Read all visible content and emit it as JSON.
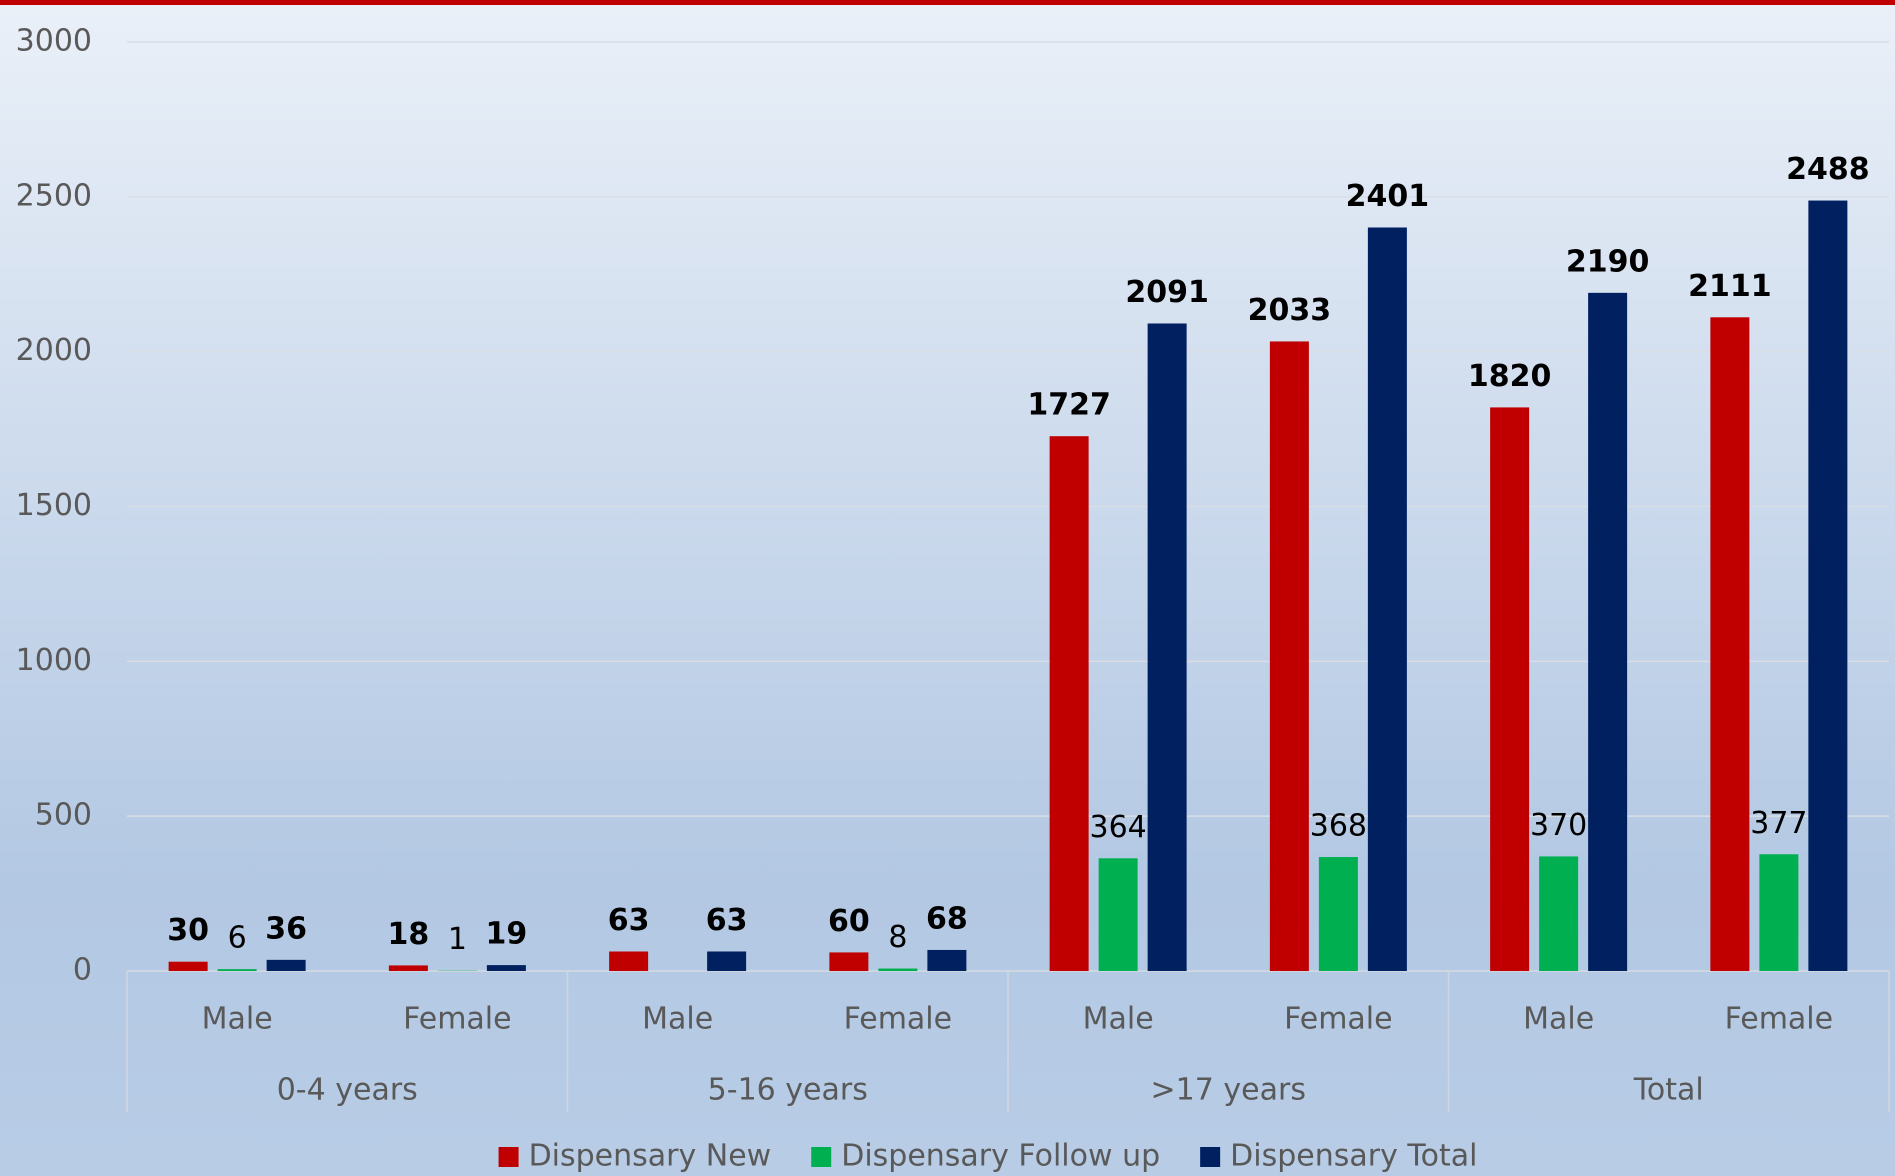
{
  "chart_data": {
    "type": "bar",
    "groups": [
      {
        "label": "0-4 years",
        "categories": [
          "Male",
          "Female"
        ]
      },
      {
        "label": "5-16 years",
        "categories": [
          "Male",
          "Female"
        ]
      },
      {
        "label": ">17 years",
        "categories": [
          "Male",
          "Female"
        ]
      },
      {
        "label": "Total",
        "categories": [
          "Male",
          "Female"
        ]
      }
    ],
    "series": [
      {
        "name": "Dispensary New",
        "color": "#c00000",
        "bold_labels": true,
        "values": [
          30,
          18,
          63,
          60,
          1727,
          2033,
          1820,
          2111
        ]
      },
      {
        "name": "Dispensary Follow up",
        "color": "#00b050",
        "bold_labels": false,
        "values": [
          6,
          1,
          null,
          8,
          364,
          368,
          370,
          377
        ]
      },
      {
        "name": "Dispensary Total",
        "color": "#002060",
        "bold_labels": true,
        "values": [
          36,
          19,
          63,
          68,
          2091,
          2401,
          2190,
          2488
        ]
      }
    ],
    "ylim": [
      0,
      3000
    ],
    "yticks": [
      0,
      500,
      1000,
      1500,
      2000,
      2500,
      3000
    ],
    "grid": true,
    "legend": "bottom"
  }
}
